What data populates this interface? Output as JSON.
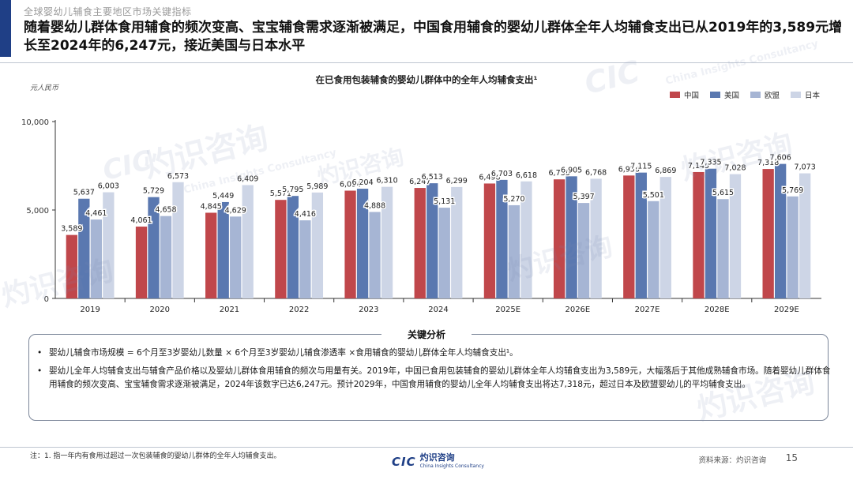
{
  "breadcrumb": "全球婴幼儿辅食主要地区市场关键指标",
  "headline": "随着婴幼儿群体食用辅食的频次变高、宝宝辅食需求逐渐被满足，中国食用辅食的婴幼儿群体全年人均辅食支出已从2019年的3,589元增长至2024年的6,247元，接近美国与日本水平",
  "chart_title": "在已食用包装辅食的婴幼儿群体中的全年人均辅食支出¹",
  "unit_label": "元人民币",
  "colors": {
    "中国": "#c0474b",
    "美国": "#5a78b0",
    "欧盟": "#a6b5d4",
    "日本": "#cdd5e6",
    "brand": "#1f3f86"
  },
  "chart_data": {
    "type": "bar",
    "categories": [
      "2019",
      "2020",
      "2021",
      "2022",
      "2023",
      "2024",
      "2025E",
      "2026E",
      "2027E",
      "2028E",
      "2029E"
    ],
    "series": [
      {
        "name": "中国",
        "values": [
          3589,
          4061,
          4845,
          5571,
          6094,
          6247,
          6498,
          6733,
          6950,
          7145,
          7318
        ]
      },
      {
        "name": "美国",
        "values": [
          5637,
          5729,
          5449,
          5795,
          6204,
          6513,
          6703,
          6905,
          7115,
          7335,
          7606
        ]
      },
      {
        "name": "欧盟",
        "values": [
          4461,
          4658,
          4629,
          4416,
          4888,
          5131,
          5270,
          5397,
          5501,
          5615,
          5769
        ]
      },
      {
        "name": "日本",
        "values": [
          6003,
          6573,
          6409,
          5989,
          6310,
          6299,
          6618,
          6768,
          6869,
          7028,
          7073
        ]
      }
    ],
    "ylim": [
      0,
      10000
    ],
    "yticks": [
      0,
      5000,
      10000
    ],
    "ytick_labels": [
      "0",
      "5,000",
      "10,000"
    ],
    "gridlines": false,
    "legend_position": "top-right"
  },
  "analysis": {
    "label": "关键分析",
    "bullets": [
      "婴幼儿辅食市场规模 = 6个月至3岁婴幼儿数量 × 6个月至3岁婴幼儿辅食渗透率 ×食用辅食的婴幼儿群体全年人均辅食支出¹。",
      "婴幼儿全年人均辅食支出与辅食产品价格以及婴幼儿群体食用辅食的频次与用量有关。2019年，中国已食用包装辅食的婴幼儿群体全年人均辅食支出为3,589元，大幅落后于其他成熟辅食市场。随着婴幼儿群体食用辅食的频次变高、宝宝辅食需求逐渐被满足，2024年该数字已达6,247元。预计2029年，中国食用辅食的婴幼儿全年人均辅食支出将达7,318元，超过日本及欧盟婴幼儿的平均辅食支出。"
    ]
  },
  "footnote": "注：1. 指一年内有食用过超过一次包装辅食的婴幼儿群体的全年人均辅食支出。",
  "logo": {
    "mark": "CIC",
    "name_cn": "灼识咨询",
    "name_en": "China Insights Consultancy"
  },
  "source": "资料来源：灼识咨询",
  "page_number": "15",
  "watermark": {
    "cn": "灼识咨询",
    "en": "China Insights Consultancy",
    "mark": "CIC"
  }
}
